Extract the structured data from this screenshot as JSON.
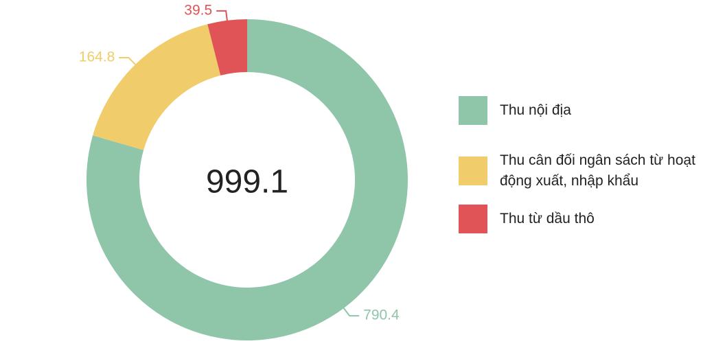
{
  "chart_data": {
    "type": "donut",
    "total": 999.1,
    "series": [
      {
        "name": "Thu nội địa",
        "color": "#8fc5a9",
        "value": 790.4
      },
      {
        "name": "Thu cân đối ngân sách từ hoạt động xuất, nhập khẩu",
        "color": "#f1cc6b",
        "value": 164.8
      },
      {
        "name": "Thu từ dầu thô",
        "color": "#e05457",
        "value": 39.5
      }
    ]
  }
}
